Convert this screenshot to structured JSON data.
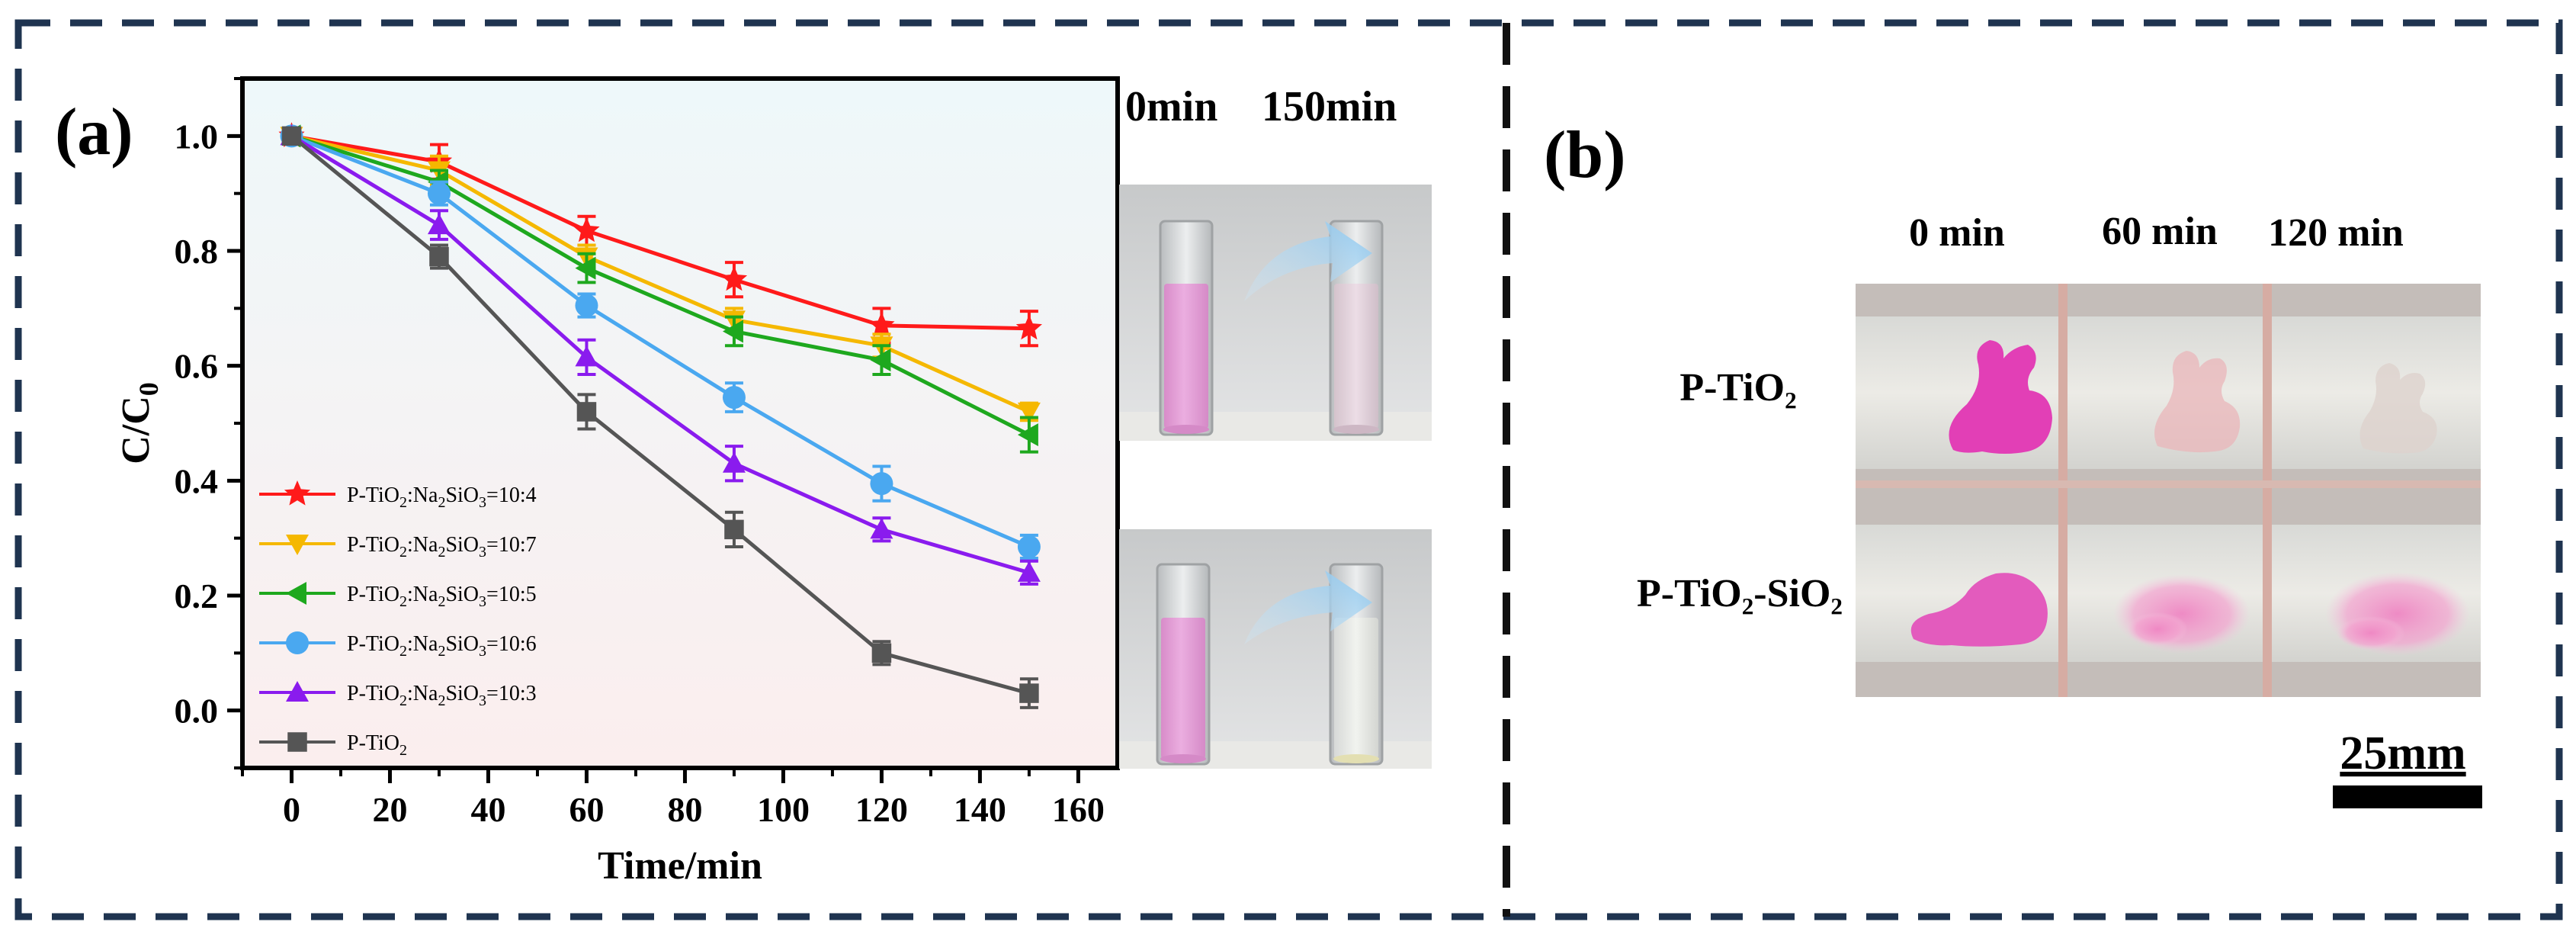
{
  "panel_a": {
    "label": "(a)",
    "photo_headers": [
      "0min",
      "150min"
    ]
  },
  "panel_b": {
    "label": "(b)",
    "column_headers": [
      "0 min",
      "60 min",
      "120 min"
    ],
    "row_labels": [
      "P-TiO₂",
      "P-TiO₂-SiO₂"
    ],
    "scale_bar_label": "25mm"
  },
  "colors": {
    "border_dash": "#1f3450",
    "plot_bg_top": "#eef8fa",
    "plot_bg_bottom": "#fbeeee",
    "stain_pink": "#e23fb6",
    "liquid_pink": "#e5a2d8"
  },
  "chart_data": {
    "type": "line",
    "xlabel": "Time/min",
    "ylabel": "C/C",
    "ylabel_sub": "0",
    "x": [
      0,
      30,
      60,
      90,
      120,
      150
    ],
    "xlim": [
      -10,
      168
    ],
    "ylim": [
      -0.1,
      1.1
    ],
    "xticks": [
      0,
      20,
      40,
      60,
      80,
      100,
      120,
      140,
      160
    ],
    "yticks": [
      0.0,
      0.2,
      0.4,
      0.6,
      0.8,
      1.0
    ],
    "xtick_labels": [
      "0",
      "20",
      "40",
      "60",
      "80",
      "100",
      "120",
      "140",
      "160"
    ],
    "ytick_labels": [
      "0.0",
      "0.2",
      "0.4",
      "0.6",
      "0.8",
      "1.0"
    ],
    "legend_position": "bottom-left",
    "series": [
      {
        "name": "P-TiO2:Na2SiO3=10:4",
        "legend": {
          "p1": "P-TiO",
          "s1": "2",
          "p2": ":Na",
          "s2": "2",
          "p3": "SiO",
          "s3": "3",
          "p4": "=10:4"
        },
        "color": "#ff1a1a",
        "marker": "star",
        "values": [
          1.0,
          0.955,
          0.835,
          0.75,
          0.67,
          0.665
        ],
        "errors": [
          0.01,
          0.03,
          0.025,
          0.03,
          0.03,
          0.03
        ]
      },
      {
        "name": "P-TiO2:Na2SiO3=10:7",
        "legend": {
          "p1": "P-TiO",
          "s1": "2",
          "p2": ":Na",
          "s2": "2",
          "p3": "SiO",
          "s3": "3",
          "p4": "=10:7"
        },
        "color": "#f5b800",
        "marker": "triangle-down",
        "values": [
          1.0,
          0.94,
          0.79,
          0.68,
          0.635,
          0.52
        ],
        "errors": [
          0.01,
          0.025,
          0.02,
          0.02,
          0.02,
          0.015
        ]
      },
      {
        "name": "P-TiO2:Na2SiO3=10:5",
        "legend": {
          "p1": "P-TiO",
          "s1": "2",
          "p2": ":Na",
          "s2": "2",
          "p3": "SiO",
          "s3": "3",
          "p4": "=10:5"
        },
        "color": "#1ea81e",
        "marker": "triangle-left",
        "values": [
          1.0,
          0.92,
          0.77,
          0.66,
          0.61,
          0.48
        ],
        "errors": [
          0.01,
          0.02,
          0.025,
          0.025,
          0.025,
          0.03
        ]
      },
      {
        "name": "P-TiO2:Na2SiO3=10:6",
        "legend": {
          "p1": "P-TiO",
          "s1": "2",
          "p2": ":Na",
          "s2": "2",
          "p3": "SiO",
          "s3": "3",
          "p4": "=10:6"
        },
        "color": "#4aa8f0",
        "marker": "circle",
        "values": [
          1.0,
          0.9,
          0.705,
          0.545,
          0.395,
          0.285
        ],
        "errors": [
          0.01,
          0.02,
          0.02,
          0.025,
          0.03,
          0.02
        ]
      },
      {
        "name": "P-TiO2:Na2SiO3=10:3",
        "legend": {
          "p1": "P-TiO",
          "s1": "2",
          "p2": ":Na",
          "s2": "2",
          "p3": "SiO",
          "s3": "3",
          "p4": "=10:3"
        },
        "color": "#8a1bee",
        "marker": "triangle-up",
        "values": [
          1.0,
          0.845,
          0.615,
          0.43,
          0.315,
          0.24
        ],
        "errors": [
          0.01,
          0.025,
          0.03,
          0.03,
          0.02,
          0.02
        ]
      },
      {
        "name": "P-TiO2",
        "legend": {
          "p1": "P-TiO",
          "s1": "2",
          "p2": "",
          "s2": "",
          "p3": "",
          "s3": "",
          "p4": ""
        },
        "color": "#555555",
        "marker": "square",
        "values": [
          1.0,
          0.79,
          0.52,
          0.315,
          0.1,
          0.03
        ],
        "errors": [
          0.01,
          0.02,
          0.03,
          0.03,
          0.02,
          0.025
        ]
      }
    ]
  }
}
